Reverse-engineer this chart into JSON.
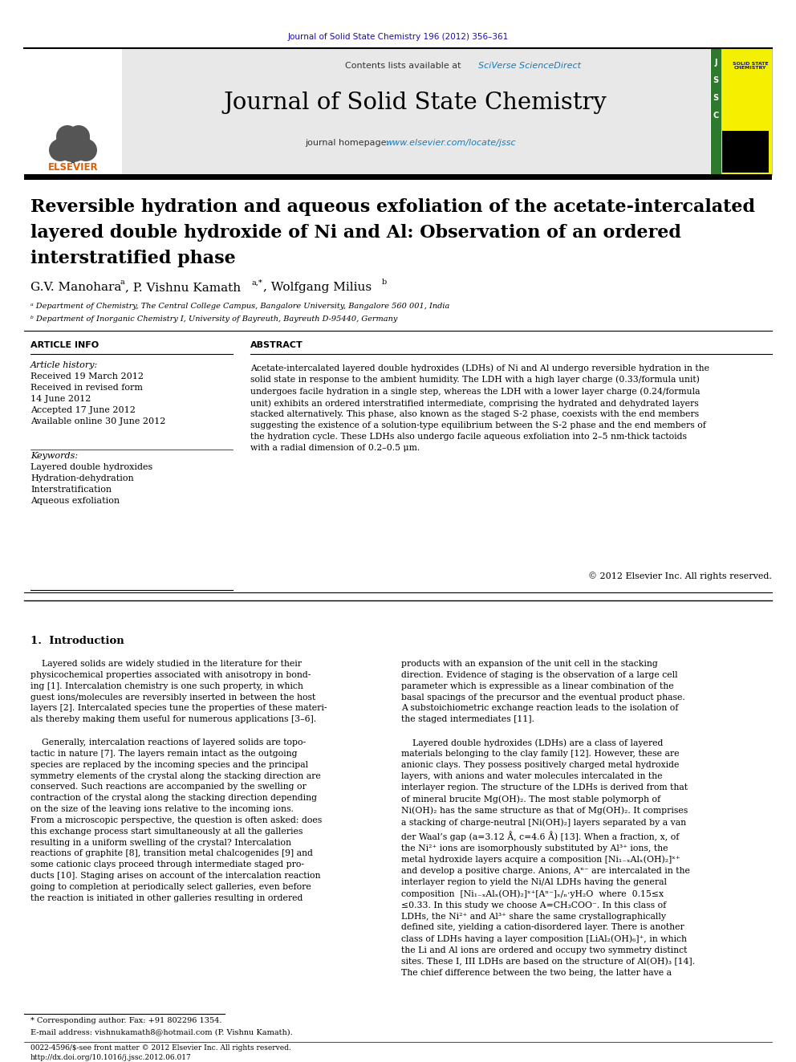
{
  "page_bg": "#ffffff",
  "top_journal_ref": "Journal of Solid State Chemistry 196 (2012) 356–361",
  "top_journal_ref_color": "#1a0dab",
  "header_bg": "#e8e8e8",
  "header_sciverse_color": "#1a7ab5",
  "journal_title": "Journal of Solid State Chemistry",
  "journal_homepage_url": "www.elsevier.com/locate/jssc",
  "journal_homepage_color": "#1a7ab5",
  "article_title_line1": "Reversible hydration and aqueous exfoliation of the acetate-intercalated",
  "article_title_line2": "layered double hydroxide of Ni and Al: Observation of an ordered",
  "article_title_line3": "interstratified phase",
  "affil_a": "ᵃ Department of Chemistry, The Central College Campus, Bangalore University, Bangalore 560 001, India",
  "affil_b": "ᵇ Department of Inorganic Chemistry I, University of Bayreuth, Bayreuth D-95440, Germany",
  "article_history_label": "Article history:",
  "received": "Received 19 March 2012",
  "received_revised": "Received in revised form",
  "revised_date": "14 June 2012",
  "accepted": "Accepted 17 June 2012",
  "available": "Available online 30 June 2012",
  "keywords_label": "Keywords:",
  "kw1": "Layered double hydroxides",
  "kw2": "Hydration-dehydration",
  "kw3": "Interstratification",
  "kw4": "Aqueous exfoliation",
  "abstract_text": "Acetate-intercalated layered double hydroxides (LDHs) of Ni and Al undergo reversible hydration in the\nsolid state in response to the ambient humidity. The LDH with a high layer charge (0.33/formula unit)\nundergoes facile hydration in a single step, whereas the LDH with a lower layer charge (0.24/formula\nunit) exhibits an ordered interstratified intermediate, comprising the hydrated and dehydrated layers\nstacked alternatively. This phase, also known as the staged S-2 phase, coexists with the end members\nsuggesting the existence of a solution-type equilibrium between the S-2 phase and the end members of\nthe hydration cycle. These LDHs also undergo facile aqueous exfoliation into 2–5 nm-thick tactoids\nwith a radial dimension of 0.2–0.5 μm.",
  "copyright": "© 2012 Elsevier Inc. All rights reserved.",
  "intro_heading": "1.  Introduction",
  "intro_col1_p1": "    Layered solids are widely studied in the literature for their\nphysicochemical properties associated with anisotropy in bond-\ning [1]. Intercalation chemistry is one such property, in which\nguest ions/molecules are reversibly inserted in between the host\nlayers [2]. Intercalated species tune the properties of these materi-\nals thereby making them useful for numerous applications [3–6].",
  "intro_col1_p2": "    Generally, intercalation reactions of layered solids are topo-\ntactic in nature [7]. The layers remain intact as the outgoing\nspecies are replaced by the incoming species and the principal\nsymmetry elements of the crystal along the stacking direction are\nconserved. Such reactions are accompanied by the swelling or\ncontraction of the crystal along the stacking direction depending\non the size of the leaving ions relative to the incoming ions.\nFrom a microscopic perspective, the question is often asked: does\nthis exchange process start simultaneously at all the galleries\nresulting in a uniform swelling of the crystal? Intercalation\nreactions of graphite [8], transition metal chalcogenides [9] and\nsome cationic clays proceed through intermediate staged pro-\nducts [10]. Staging arises on account of the intercalation reaction\ngoing to completion at periodically select galleries, even before\nthe reaction is initiated in other galleries resulting in ordered",
  "intro_col2_p1": "products with an expansion of the unit cell in the stacking\ndirection. Evidence of staging is the observation of a large cell\nparameter which is expressible as a linear combination of the\nbasal spacings of the precursor and the eventual product phase.\nA substoichiometric exchange reaction leads to the isolation of\nthe staged intermediates [11].",
  "intro_col2_p2": "    Layered double hydroxides (LDHs) are a class of layered\nmaterials belonging to the clay family [12]. However, these are\nanionic clays. They possess positively charged metal hydroxide\nlayers, with anions and water molecules intercalated in the\ninterlayer region. The structure of the LDHs is derived from that\nof mineral brucite Mg(OH)₂. The most stable polymorph of\nNi(OH)₂ has the same structure as that of Mg(OH)₂. It comprises\na stacking of charge-neutral [Ni(OH)₂] layers separated by a van\nder Waal’s gap (a=3.12 Å, c=4.6 Å) [13]. When a fraction, x, of\nthe Ni²⁺ ions are isomorphously substituted by Al³⁺ ions, the\nmetal hydroxide layers acquire a composition [Ni₁₋ₓAlₓ(OH)₂]ˣ⁺\nand develop a positive charge. Anions, Aⁿ⁻ are intercalated in the\ninterlayer region to yield the Ni/Al LDHs having the general\ncomposition  [Ni₁₋ₓAlₓ(OH)₂]ˣ⁺[Aⁿ⁻]ₓ/ₙ·yH₂O  where  0.15≤x\n≤0.33. In this study we choose A=CH₃COO⁻. In this class of\nLDHs, the Ni²⁺ and Al³⁺ share the same crystallographically\ndefined site, yielding a cation-disordered layer. There is another\nclass of LDHs having a layer composition [LiAl₂(OH)₆]⁺, in which\nthe Li and Al ions are ordered and occupy two symmetry distinct\nsites. These I, III LDHs are based on the structure of Al(OH)₃ [14].\nThe chief difference between the two being, the latter have a",
  "footnote_star": "* Corresponding author. Fax: +91 802296 1354.",
  "footnote_email": "E-mail address: vishnukamath8@hotmail.com (P. Vishnu Kamath).",
  "footer_issn": "0022-4596/$-see front matter © 2012 Elsevier Inc. All rights reserved.",
  "footer_doi": "http://dx.doi.org/10.1016/j.jssc.2012.06.017"
}
